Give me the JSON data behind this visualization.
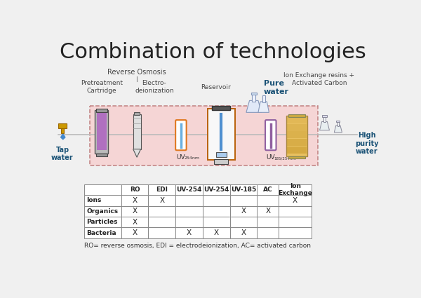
{
  "title": "Combination of technologies",
  "title_fontsize": 22,
  "background_color": "#f0f0f0",
  "diagram_labels": {
    "tap_water": "Tap\nwater",
    "high_purity": "High\npurity\nwater",
    "pure_water": "Pure\nwater",
    "reverse_osmosis": "Reverse Osmosis",
    "pretreatment": "Pretreatment\nCartridge",
    "electro": "Electro-\ndeionization",
    "reservoir": "Reservoir",
    "ion_exchange": "Ion Exchange resins +\nActivated Carbon",
    "uv254_label": "UV",
    "uv254_sub": "254nm",
    "uv185_label": "UV",
    "uv185_sub": "185/254nm"
  },
  "table_columns": [
    "",
    "RO",
    "EDI",
    "UV-254",
    "UV-254",
    "UV-185",
    "AC",
    "Ion\nExchange"
  ],
  "table_rows": [
    "Ions",
    "Organics",
    "Particles",
    "Bacteria"
  ],
  "table_data": [
    [
      "X",
      "X",
      "",
      "",
      "",
      "",
      "X"
    ],
    [
      "X",
      "",
      "",
      "",
      "X",
      "X",
      ""
    ],
    [
      "X",
      "",
      "",
      "",
      "",
      "",
      ""
    ],
    [
      "X",
      "",
      "X",
      "X",
      "X",
      "",
      ""
    ]
  ],
  "footnote": "RO= reverse osmosis, EDI = electrodeionization, AC= activated carbon",
  "pink_bg": "#f5d5d5",
  "pink_border": "#c08080",
  "table_line_color": "#888888",
  "blue_label_color": "#1a5276",
  "orange_color": "#e07820",
  "purple_color": "#9060a0",
  "amber_color": "#d4a040",
  "gray_color": "#888888"
}
